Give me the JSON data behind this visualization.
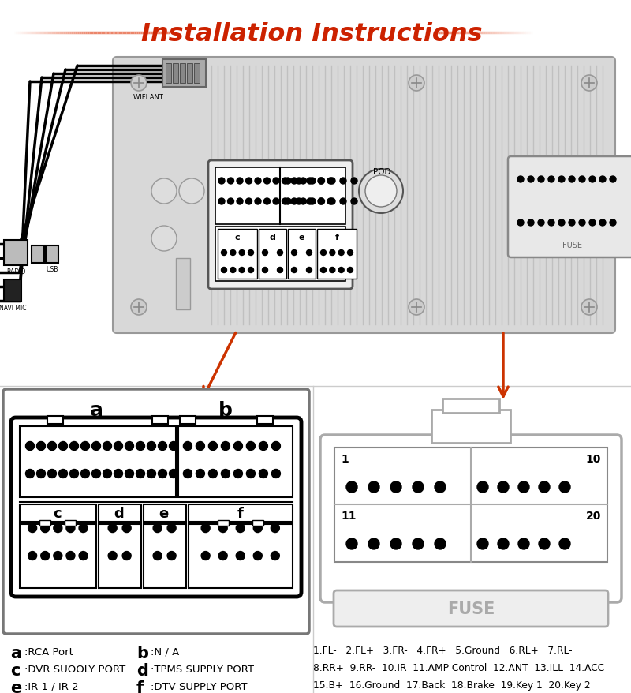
{
  "title": "Installation Instructions",
  "title_color": "#CC2200",
  "bg_color": "#FFFFFF",
  "line_color": "#E87050",
  "left_labels_line1": [
    "a",
    ":RCA Port",
    "b",
    ":N/A"
  ],
  "left_labels_line2": [
    "c",
    ":DVR SUOOLY PORT",
    "d",
    ":TPMS SUPPLY PORT"
  ],
  "left_labels_line3": [
    "e",
    ":IR 1 / IR 2",
    "f",
    ":DTV SUPPLY PORT"
  ],
  "right_labels": [
    "1.FL-   2.FL+   3.FR-   4.FR+   5.Ground   6.RL+   7.RL-",
    "8.RR+  9.RR-  10.IR  11.AMP Control  12.ANT  13.ILL  14.ACC",
    "15.B+  16.Ground  17.Back  18.Brake  19.Key 1  20.Key 2"
  ]
}
